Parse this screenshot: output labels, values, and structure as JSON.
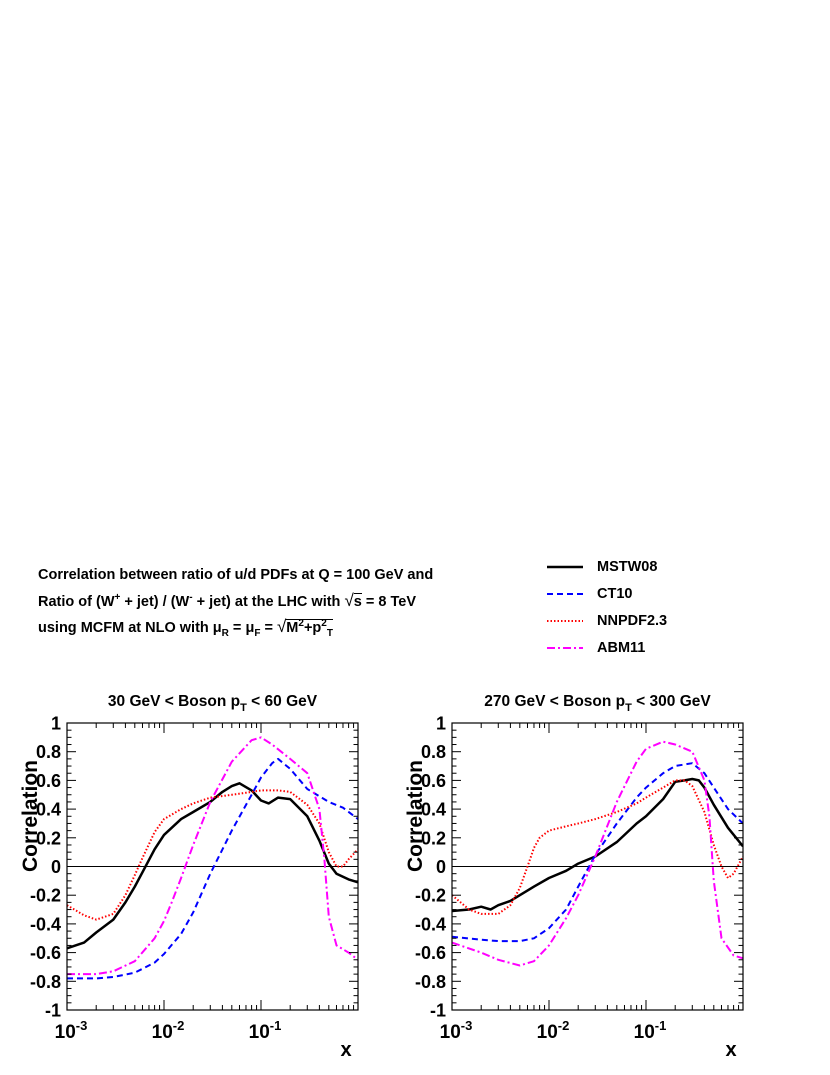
{
  "header": {
    "line1": "Correlation between ratio of u/d PDFs at Q = 100 GeV and",
    "line2": {
      "a": "Ratio of (W",
      "sup1": "+",
      "b": " + jet) / (W",
      "sup2": "-",
      "c": " + jet) at the LHC with ",
      "sqrt_arg": "s",
      "d": " = 8 TeV"
    },
    "line3": {
      "a": "using MCFM at NLO with ",
      "mu": "μ",
      "sub_r": "R",
      "eq": " = ",
      "mu2": "μ",
      "sub_f": "F",
      "eq2": " = ",
      "m": "M",
      "m_sup": "2",
      "plus": "+p",
      "p_sup": "2",
      "p_sub": "T"
    }
  },
  "legend": [
    {
      "label": "MSTW08",
      "color": "#000000",
      "style": "solid"
    },
    {
      "label": "CT10",
      "color": "#0000ff",
      "style": "dashed"
    },
    {
      "label": "NNPDF2.3",
      "color": "#ff0000",
      "style": "dotted"
    },
    {
      "label": "ABM11",
      "color": "#ff00ff",
      "style": "dashdot"
    }
  ],
  "chart_data": [
    {
      "type": "line",
      "title": "30 GeV < Boson p_T <  60 GeV",
      "xlabel": "x",
      "ylabel": "Correlation",
      "xscale": "log",
      "xlim": [
        0.001,
        1
      ],
      "ylim": [
        -1,
        1
      ],
      "yticks": [
        "-1",
        "-0.8",
        "-0.6",
        "-0.4",
        "-0.2",
        "0",
        "0.2",
        "0.4",
        "0.6",
        "0.8",
        "1"
      ],
      "xticks": [
        "10-3",
        "10-2",
        "10-1"
      ],
      "series": [
        {
          "name": "MSTW08",
          "x": [
            0.001,
            0.0015,
            0.002,
            0.003,
            0.004,
            0.005,
            0.006,
            0.008,
            0.01,
            0.015,
            0.02,
            0.03,
            0.04,
            0.05,
            0.06,
            0.08,
            0.1,
            0.12,
            0.15,
            0.2,
            0.3,
            0.4,
            0.5,
            0.6,
            0.8,
            1.0
          ],
          "y": [
            -0.57,
            -0.53,
            -0.46,
            -0.37,
            -0.25,
            -0.14,
            -0.04,
            0.12,
            0.22,
            0.33,
            0.38,
            0.45,
            0.52,
            0.56,
            0.58,
            0.53,
            0.46,
            0.44,
            0.48,
            0.47,
            0.35,
            0.18,
            0.02,
            -0.05,
            -0.09,
            -0.11
          ]
        },
        {
          "name": "CT10",
          "x": [
            0.001,
            0.002,
            0.003,
            0.005,
            0.008,
            0.01,
            0.015,
            0.02,
            0.03,
            0.05,
            0.08,
            0.1,
            0.13,
            0.15,
            0.2,
            0.3,
            0.5,
            0.7,
            1.0
          ],
          "y": [
            -0.78,
            -0.78,
            -0.77,
            -0.74,
            -0.67,
            -0.61,
            -0.47,
            -0.32,
            -0.05,
            0.25,
            0.5,
            0.62,
            0.72,
            0.75,
            0.68,
            0.54,
            0.45,
            0.41,
            0.33
          ]
        },
        {
          "name": "NNPDF2.3",
          "x": [
            0.001,
            0.0015,
            0.002,
            0.003,
            0.004,
            0.005,
            0.006,
            0.008,
            0.01,
            0.015,
            0.02,
            0.03,
            0.05,
            0.08,
            0.1,
            0.15,
            0.2,
            0.3,
            0.4,
            0.5,
            0.6,
            0.7,
            0.8,
            1.0
          ],
          "y": [
            -0.27,
            -0.34,
            -0.37,
            -0.33,
            -0.2,
            -0.06,
            0.06,
            0.24,
            0.33,
            0.4,
            0.44,
            0.48,
            0.5,
            0.52,
            0.53,
            0.53,
            0.52,
            0.43,
            0.3,
            0.1,
            0.0,
            0.0,
            0.05,
            0.12
          ]
        },
        {
          "name": "ABM11",
          "x": [
            0.001,
            0.002,
            0.003,
            0.005,
            0.008,
            0.01,
            0.012,
            0.015,
            0.02,
            0.03,
            0.05,
            0.08,
            0.1,
            0.13,
            0.2,
            0.3,
            0.4,
            0.45,
            0.5,
            0.6,
            0.8,
            1.0
          ],
          "y": [
            -0.75,
            -0.75,
            -0.73,
            -0.66,
            -0.5,
            -0.38,
            -0.25,
            -0.08,
            0.15,
            0.45,
            0.73,
            0.88,
            0.9,
            0.85,
            0.75,
            0.65,
            0.4,
            0.05,
            -0.35,
            -0.55,
            -0.6,
            -0.65
          ]
        }
      ]
    },
    {
      "type": "line",
      "title": "270 GeV < Boson p_T < 300 GeV",
      "xlabel": "x",
      "ylabel": "Correlation",
      "xscale": "log",
      "xlim": [
        0.001,
        1
      ],
      "ylim": [
        -1,
        1
      ],
      "yticks": [
        "-1",
        "-0.8",
        "-0.6",
        "-0.4",
        "-0.2",
        "0",
        "0.2",
        "0.4",
        "0.6",
        "0.8",
        "1"
      ],
      "xticks": [
        "10-3",
        "10-2",
        "10-1"
      ],
      "series": [
        {
          "name": "MSTW08",
          "x": [
            0.001,
            0.0015,
            0.002,
            0.0025,
            0.003,
            0.004,
            0.005,
            0.007,
            0.01,
            0.015,
            0.02,
            0.03,
            0.05,
            0.08,
            0.1,
            0.15,
            0.2,
            0.25,
            0.3,
            0.35,
            0.4,
            0.5,
            0.7,
            1.0
          ],
          "y": [
            -0.31,
            -0.3,
            -0.28,
            -0.3,
            -0.27,
            -0.24,
            -0.2,
            -0.14,
            -0.08,
            -0.03,
            0.02,
            0.07,
            0.17,
            0.3,
            0.35,
            0.47,
            0.59,
            0.6,
            0.61,
            0.6,
            0.55,
            0.43,
            0.27,
            0.14
          ]
        },
        {
          "name": "CT10",
          "x": [
            0.001,
            0.002,
            0.003,
            0.005,
            0.007,
            0.01,
            0.015,
            0.02,
            0.03,
            0.05,
            0.08,
            0.1,
            0.15,
            0.2,
            0.3,
            0.4,
            0.5,
            0.7,
            1.0
          ],
          "y": [
            -0.49,
            -0.51,
            -0.52,
            -0.52,
            -0.5,
            -0.43,
            -0.3,
            -0.14,
            0.08,
            0.3,
            0.48,
            0.55,
            0.65,
            0.7,
            0.72,
            0.65,
            0.55,
            0.4,
            0.3
          ]
        },
        {
          "name": "NNPDF2.3",
          "x": [
            0.001,
            0.0015,
            0.002,
            0.003,
            0.004,
            0.005,
            0.006,
            0.007,
            0.008,
            0.01,
            0.015,
            0.02,
            0.03,
            0.05,
            0.08,
            0.1,
            0.15,
            0.2,
            0.25,
            0.3,
            0.4,
            0.5,
            0.6,
            0.7,
            0.8,
            1.0
          ],
          "y": [
            -0.2,
            -0.3,
            -0.33,
            -0.33,
            -0.27,
            -0.15,
            0.0,
            0.13,
            0.2,
            0.25,
            0.28,
            0.3,
            0.33,
            0.38,
            0.44,
            0.48,
            0.55,
            0.6,
            0.6,
            0.56,
            0.38,
            0.15,
            0.0,
            -0.08,
            -0.05,
            0.07
          ]
        },
        {
          "name": "ABM11",
          "x": [
            0.001,
            0.002,
            0.003,
            0.005,
            0.007,
            0.01,
            0.015,
            0.02,
            0.03,
            0.05,
            0.08,
            0.1,
            0.15,
            0.2,
            0.3,
            0.4,
            0.45,
            0.5,
            0.6,
            0.8,
            1.0
          ],
          "y": [
            -0.53,
            -0.6,
            -0.65,
            -0.69,
            -0.66,
            -0.55,
            -0.36,
            -0.2,
            0.07,
            0.45,
            0.73,
            0.82,
            0.87,
            0.85,
            0.8,
            0.6,
            0.35,
            -0.1,
            -0.5,
            -0.62,
            -0.64
          ]
        }
      ]
    }
  ],
  "colors": {
    "MSTW08": "#000000",
    "CT10": "#0000ff",
    "NNPDF2.3": "#ff0000",
    "ABM11": "#ff00ff"
  }
}
